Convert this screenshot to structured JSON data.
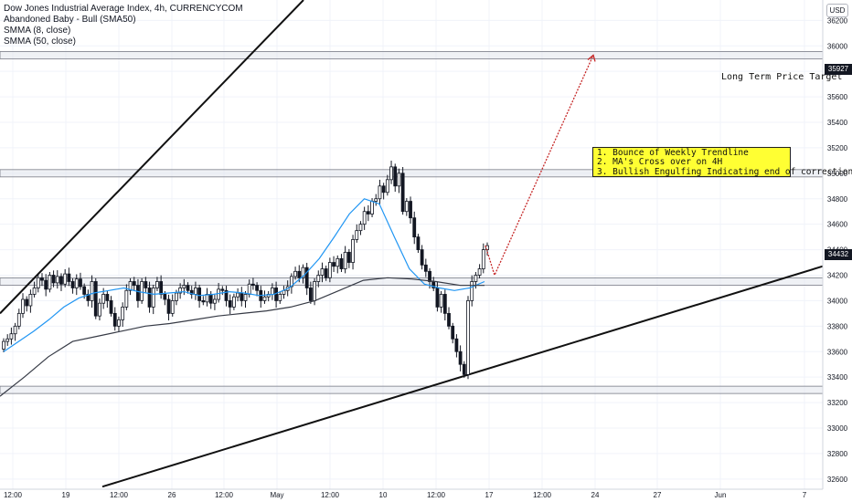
{
  "legend": {
    "title": "Dow Jones Industrial Average Index, 4h, CURRENCYCOM",
    "line2": "Abandoned Baby - Bull (SMA50)",
    "line3": "SMMA (8, close)",
    "line4": "SMMA (50, close)"
  },
  "currency_badge": "USD",
  "annotations": {
    "target_label": "Long Term Price Target",
    "box_lines": [
      "1. Bounce of Weekly Trendline",
      "2. MA's Cross over on 4H",
      "3. Bullish Engulfing  Indicating end of correction"
    ]
  },
  "price_tags": {
    "target": "35927",
    "last": "34432"
  },
  "colors": {
    "up_candle": "#131722",
    "down_candle": "#131722",
    "smma8": "#2196f3",
    "smma50": "#363a45",
    "projection": "#c62828",
    "zone_fill": "#e0e3eb",
    "annotation_bg": "#ffff33"
  },
  "chart_data": {
    "type": "candlestick",
    "title": "Dow Jones Industrial Average Index, 4h, CURRENCYCOM",
    "ylim": [
      32520,
      36360
    ],
    "y_ticks": [
      32600,
      32800,
      33000,
      33200,
      33400,
      33600,
      33800,
      34000,
      34200,
      34400,
      34600,
      34800,
      35000,
      35200,
      35400,
      35600,
      35800,
      36000,
      36200
    ],
    "x_ticks": [
      "12:00",
      "19",
      "12:00",
      "26",
      "12:00",
      "May",
      "12:00",
      "10",
      "12:00",
      "17",
      "12:00",
      "24",
      "27",
      "Jun",
      "7"
    ],
    "candles_close": [
      33680,
      33700,
      33740,
      33800,
      33900,
      34010,
      33960,
      34050,
      34100,
      34180,
      34160,
      34090,
      34200,
      34140,
      34190,
      34130,
      34210,
      34150,
      34100,
      34170,
      34110,
      34050,
      34000,
      34150,
      33880,
      33980,
      34050,
      34000,
      33900,
      33800,
      33850,
      33950,
      34080,
      34150,
      34120,
      34000,
      34150,
      34100,
      33950,
      34100,
      34150,
      34050,
      34010,
      33900,
      34000,
      34060,
      34100,
      34120,
      34080,
      34050,
      34100,
      34000,
      33990,
      34050,
      33980,
      34010,
      34090,
      34080,
      34000,
      33950,
      34030,
      34060,
      34000,
      34050,
      34130,
      34120,
      34080,
      34000,
      34030,
      34050,
      34100,
      34000,
      34050,
      34080,
      34110,
      34190,
      34230,
      34180,
      34260,
      34100,
      34000,
      34150,
      34200,
      34250,
      34180,
      34300,
      34270,
      34330,
      34250,
      34380,
      34300,
      34480,
      34550,
      34600,
      34700,
      34680,
      34780,
      34800,
      34900,
      34850,
      34950,
      35050,
      34900,
      35000,
      34700,
      34780,
      34650,
      34500,
      34400,
      34280,
      34230,
      34150,
      34100,
      33950,
      34050,
      33900,
      33800,
      33700,
      33600,
      33500,
      33420,
      34000,
      34150,
      34200,
      34250,
      34400,
      34432
    ],
    "series": [
      {
        "name": "SMMA (8, close)",
        "values": [
          33600,
          33680,
          33760,
          33850,
          33950,
          34020,
          34060,
          34080,
          34100,
          34070,
          34050,
          34060,
          34070,
          34040,
          34050,
          34070,
          34060,
          34040,
          34050,
          34100,
          34200,
          34330,
          34500,
          34680,
          34800,
          34760,
          34500,
          34250,
          34130,
          34100,
          34080,
          34100,
          34150
        ]
      },
      {
        "name": "SMMA (50, close)",
        "values": [
          33250,
          33400,
          33560,
          33680,
          33720,
          33760,
          33800,
          33820,
          33850,
          33880,
          33900,
          33920,
          33950,
          34000,
          34080,
          34160,
          34180,
          34170,
          34150,
          34120,
          34120
        ]
      }
    ],
    "levels": [
      35927,
      35000,
      34150,
      33300
    ],
    "projection": [
      [
        34432,
        34200
      ],
      [
        34200,
        35927
      ]
    ]
  }
}
